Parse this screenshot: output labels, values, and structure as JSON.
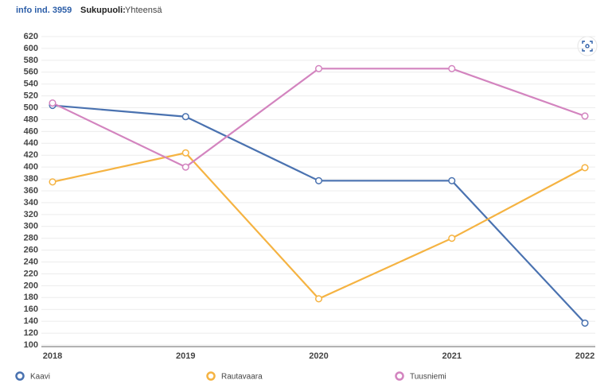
{
  "header": {
    "indicator": "info ind. 3959",
    "filter_label": "Sukupuoli:",
    "filter_value": "Yhteensä"
  },
  "chart_data": {
    "type": "line",
    "categories": [
      "2018",
      "2019",
      "2020",
      "2021",
      "2022"
    ],
    "series": [
      {
        "name": "Kaavi",
        "color": "#4a72b0",
        "values": [
          504,
          485,
          377,
          377,
          137
        ]
      },
      {
        "name": "Rautavaara",
        "color": "#f5b342",
        "values": [
          375,
          424,
          178,
          280,
          399
        ]
      },
      {
        "name": "Tuusniemi",
        "color": "#d384bf",
        "values": [
          508,
          400,
          566,
          566,
          486
        ]
      }
    ],
    "ylim": [
      100,
      620
    ],
    "yticks": [
      100,
      120,
      140,
      160,
      180,
      200,
      220,
      240,
      260,
      280,
      300,
      320,
      340,
      360,
      380,
      400,
      420,
      440,
      460,
      480,
      500,
      520,
      540,
      560,
      580,
      600,
      620
    ],
    "grid": true
  }
}
